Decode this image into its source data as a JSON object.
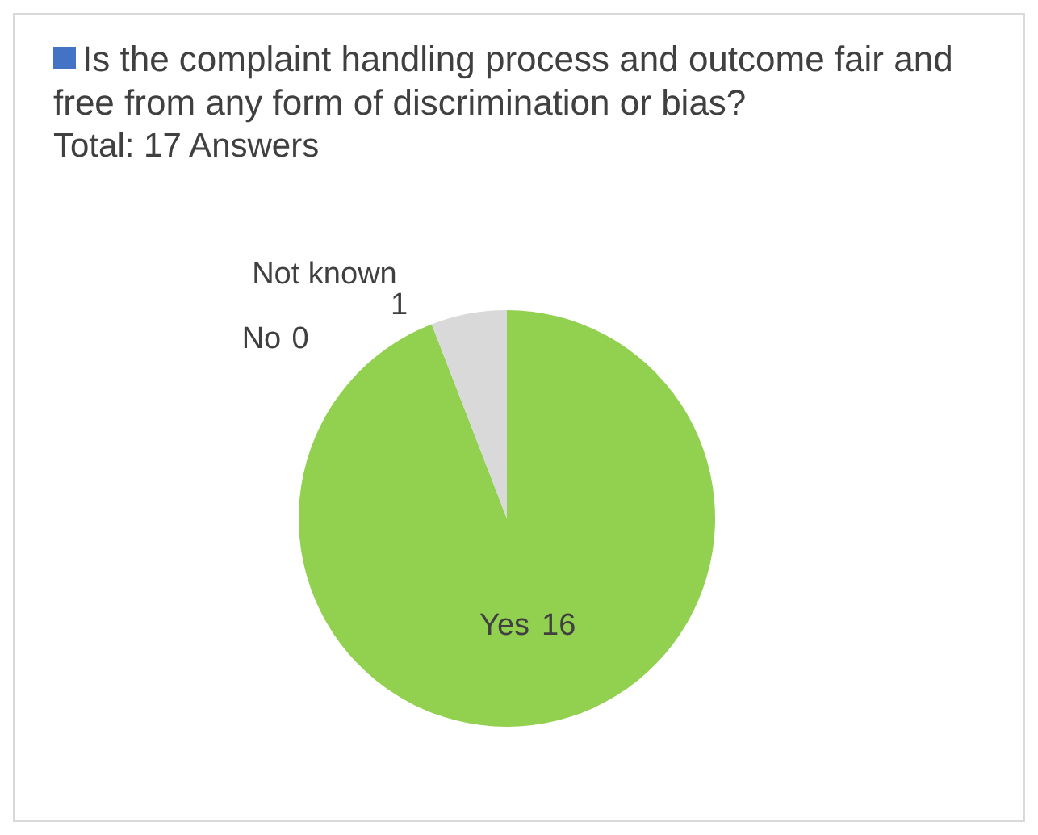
{
  "chart_data": {
    "type": "pie",
    "subtitle": "Total: 17 Answers",
    "legend": "top left",
    "categories": [
      "Yes",
      "No",
      "Not known"
    ],
    "series": [
      {
        "name": "Is the complaint handling process and outcome fair and free from any form of discrimination or bias?",
        "color": "#4472c4",
        "values": [
          16,
          0,
          1
        ],
        "value_labels": [
          "16",
          "0",
          "1"
        ]
      }
    ],
    "colors": [
      "#92d050",
      "#ed7d31",
      "#d9d9d9"
    ]
  }
}
